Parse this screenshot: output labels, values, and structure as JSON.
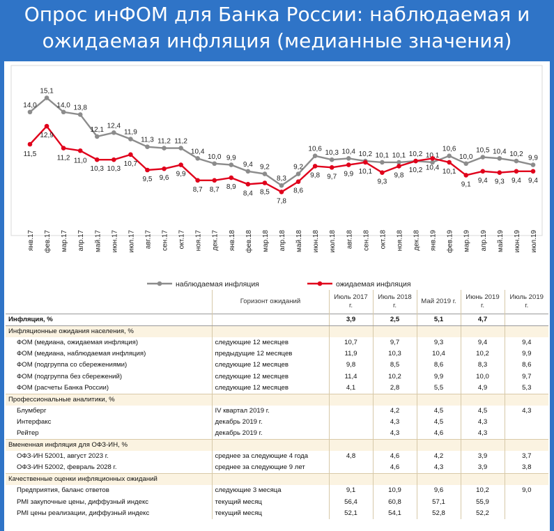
{
  "title_line1": "Опрос инФОМ для Банка России: наблюдаемая и",
  "title_line2": "ожидаемая инфляция (медианные значения)",
  "chart_data": {
    "type": "line",
    "categories": [
      "янв.17",
      "фев.17",
      "мар.17",
      "апр.17",
      "май.17",
      "июн.17",
      "июл.17",
      "авг.17",
      "сен.17",
      "окт.17",
      "ноя.17",
      "дек.17",
      "янв.18",
      "фев.18",
      "мар.18",
      "апр.18",
      "май.18",
      "июн.18",
      "июл.18",
      "авг.18",
      "сен.18",
      "окт.18",
      "ноя.18",
      "дек.18",
      "янв.19",
      "фев.19",
      "мар.19",
      "апр.19",
      "май.19",
      "июн.19",
      "июл.19"
    ],
    "ylim": [
      7,
      16
    ],
    "series": [
      {
        "name": "наблюдаемая инфляция",
        "color": "#8c8c8c",
        "values": [
          14.0,
          15.1,
          14.0,
          13.8,
          12.1,
          12.4,
          11.9,
          11.3,
          11.2,
          11.2,
          10.4,
          10.0,
          9.9,
          9.4,
          9.2,
          8.3,
          9.2,
          10.6,
          10.3,
          10.4,
          10.2,
          10.1,
          10.1,
          10.2,
          10.1,
          10.6,
          10.0,
          10.5,
          10.4,
          10.2,
          9.9
        ]
      },
      {
        "name": "ожидаемая инфляция",
        "color": "#e0001b",
        "values": [
          11.5,
          12.9,
          11.2,
          11.0,
          10.3,
          10.3,
          10.7,
          9.5,
          9.6,
          9.9,
          8.7,
          8.7,
          8.9,
          8.4,
          8.5,
          7.8,
          8.6,
          9.8,
          9.7,
          9.9,
          10.1,
          9.3,
          9.8,
          10.2,
          10.4,
          10.1,
          9.1,
          9.4,
          9.3,
          9.4,
          9.4
        ]
      }
    ]
  },
  "table": {
    "head": [
      "",
      "Горизонт ожиданий",
      "Июль 2017 г.",
      "Июль 2018 г.",
      "Май 2019 г.",
      "Июнь 2019 г.",
      "Июль 2019 г."
    ],
    "rows": [
      {
        "kind": "infl",
        "cells": [
          "Инфляция, %",
          "",
          "3,9",
          "2,5",
          "5,1",
          "4,7",
          ""
        ]
      },
      {
        "kind": "sec",
        "cells": [
          "Инфляционные ожидания населения, %",
          "",
          "",
          "",
          "",
          "",
          ""
        ]
      },
      {
        "kind": "sub",
        "cells": [
          "ФОМ (медиана, ожидаемая инфляция)",
          "следующие 12 месяцев",
          "10,7",
          "9,7",
          "9,3",
          "9,4",
          "9,4"
        ]
      },
      {
        "kind": "sub",
        "cells": [
          "ФОМ (медиана, наблюдаемая инфляция)",
          "предыдущие 12 месяцев",
          "11,9",
          "10,3",
          "10,4",
          "10,2",
          "9,9"
        ]
      },
      {
        "kind": "sub",
        "cells": [
          "ФОМ (подгруппа со сбережениями)",
          "следующие 12 месяцев",
          "9,8",
          "8,5",
          "8,6",
          "8,3",
          "8,6"
        ]
      },
      {
        "kind": "sub",
        "cells": [
          "ФОМ (подгруппа без сбережений)",
          "следующие 12 месяцев",
          "11,4",
          "10,2",
          "9,9",
          "10,0",
          "9,7"
        ]
      },
      {
        "kind": "sub",
        "cells": [
          "ФОМ (расчеты Банка России)",
          "следующие 12 месяцев",
          "4,1",
          "2,8",
          "5,5",
          "4,9",
          "5,3"
        ]
      },
      {
        "kind": "sec",
        "cells": [
          "Профессиональные аналитики, %",
          "",
          "",
          "",
          "",
          "",
          ""
        ]
      },
      {
        "kind": "sub",
        "cells": [
          "Блумберг",
          "IV квартал 2019 г.",
          "",
          "4,2",
          "4,5",
          "4,5",
          "4,3"
        ]
      },
      {
        "kind": "sub",
        "cells": [
          "Интерфакс",
          "декабрь 2019 г.",
          "",
          "4,3",
          "4,5",
          "4,3",
          ""
        ]
      },
      {
        "kind": "sub",
        "cells": [
          "Рейтер",
          "декабрь 2019 г.",
          "",
          "4,3",
          "4,6",
          "4,3",
          ""
        ]
      },
      {
        "kind": "sec",
        "cells": [
          "Вмененная инфляция для ОФЗ-ИН, %",
          "",
          "",
          "",
          "",
          "",
          ""
        ]
      },
      {
        "kind": "sub",
        "cells": [
          "ОФЗ-ИН 52001, август 2023 г.",
          "среднее за следующие 4 года",
          "4,8",
          "4,6",
          "4,2",
          "3,9",
          "3,7"
        ]
      },
      {
        "kind": "sub",
        "cells": [
          "ОФЗ-ИН 52002, февраль 2028 г.",
          "среднее за следующие 9 лет",
          "",
          "4,6",
          "4,3",
          "3,9",
          "3,8"
        ]
      },
      {
        "kind": "sec",
        "cells": [
          "Качественные оценки инфляционных ожиданий",
          "",
          "",
          "",
          "",
          "",
          ""
        ]
      },
      {
        "kind": "sub",
        "cells": [
          "Предприятия, баланс ответов",
          "следующие 3 месяца",
          "9,1",
          "10,9",
          "9,6",
          "10,2",
          "9,0"
        ]
      },
      {
        "kind": "sub",
        "cells": [
          "PMI закупочные цены, диффузный индекс",
          "текущий месяц",
          "56,4",
          "60,8",
          "57,1",
          "55,9",
          ""
        ]
      },
      {
        "kind": "sub",
        "cells": [
          "PMI цены реализации, диффузный индекс",
          "текущий месяц",
          "52,1",
          "54,1",
          "52,8",
          "52,2",
          ""
        ]
      }
    ]
  }
}
